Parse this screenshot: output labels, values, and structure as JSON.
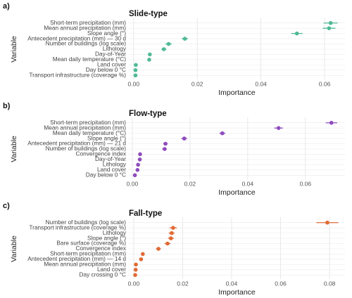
{
  "chart_data": [
    {
      "type": "dot",
      "panel_label": "a)",
      "title": "Slide-type",
      "xlabel": "Importance",
      "ylabel": "Variable",
      "categories": [
        "Short-term precipitation (mm)",
        "Mean annual precipitation (mm)",
        "Slope angle (°)",
        "Antecedent precipitation (mm) — 30 d",
        "Number of buildings (log scale)",
        "Lithology",
        "Day-of-Year",
        "Mean daily temperature (°C)",
        "Land cover",
        "Day below 0 °C",
        "Transport infrastructure (coverage %)"
      ],
      "values": [
        0.0619,
        0.0614,
        0.0513,
        0.0161,
        0.011,
        0.0095,
        0.0051,
        0.0049,
        0.0007,
        0.0006,
        0.0006
      ],
      "errors": [
        0.0022,
        0.002,
        0.0018,
        0.001,
        0.001,
        0.0008,
        0.0005,
        0.0005,
        0.0003,
        0.0003,
        0.0003
      ],
      "color": "#4fb996",
      "xlim": [
        -0.0015,
        0.0664
      ],
      "xticks": [
        {
          "value": 0,
          "label": "0.00"
        },
        {
          "value": 0.02,
          "label": "0.02"
        },
        {
          "value": 0.04,
          "label": "0.04"
        },
        {
          "value": 0.06,
          "label": "0.06"
        }
      ],
      "grid": true
    },
    {
      "type": "dot",
      "panel_label": "b)",
      "title": "Flow-type",
      "xlabel": "Importance",
      "ylabel": "Variable",
      "categories": [
        "Short-term precipitation (mm)",
        "Mean annual precipitation (mm)",
        "Mean daily temperature (°C)",
        "Slope angle (°)",
        "Antecedent precipitation (mm) — 21 d",
        "Number of buildings (log scale)",
        "Convergence index",
        "Day-of-Year",
        "Lithology",
        "Land cover",
        "Day below 0 °C"
      ],
      "values": [
        0.069,
        0.0507,
        0.0312,
        0.018,
        0.0115,
        0.0112,
        0.0027,
        0.0026,
        0.002,
        0.0018,
        0.0009
      ],
      "errors": [
        0.002,
        0.0015,
        0.001,
        0.001,
        0.0008,
        0.0008,
        0.0003,
        0.0003,
        0.0003,
        0.0003,
        0.0003
      ],
      "color": "#8e4cbf",
      "xlim": [
        -0.0012,
        0.0737
      ],
      "xticks": [
        {
          "value": 0,
          "label": "0.00"
        },
        {
          "value": 0.02,
          "label": "0.02"
        },
        {
          "value": 0.04,
          "label": "0.04"
        },
        {
          "value": 0.06,
          "label": "0.06"
        }
      ],
      "grid": true
    },
    {
      "type": "dot",
      "panel_label": "c)",
      "title": "Fall-type",
      "xlabel": "Importance",
      "ylabel": "Variable",
      "categories": [
        "Number of buildings (log scale)",
        "Transport infrastructure (coverage %)",
        "Lithology",
        "Slope angle (°)",
        "Bare surface (coverage %)",
        "Convergence index",
        "Short-term precipitation (mm)",
        "Antecedent precipitation (mm) — 14 d",
        "Mean annual precipitation (mm)",
        "Land cover",
        "Day crossing 0 °C"
      ],
      "values": [
        0.0791,
        0.0161,
        0.0155,
        0.0152,
        0.0138,
        0.0101,
        0.0037,
        0.003,
        0.0009,
        0.0008,
        0.0006
      ],
      "errors": [
        0.0045,
        0.0015,
        0.0012,
        0.0012,
        0.0012,
        0.001,
        0.0005,
        0.0005,
        0.0003,
        0.0003,
        0.0003
      ],
      "color": "#e06a35",
      "xlim": [
        -0.002,
        0.0863
      ],
      "xticks": [
        {
          "value": 0,
          "label": "0.00"
        },
        {
          "value": 0.02,
          "label": "0.02"
        },
        {
          "value": 0.04,
          "label": "0.04"
        },
        {
          "value": 0.06,
          "label": "0.06"
        },
        {
          "value": 0.08,
          "label": "0.08"
        }
      ],
      "grid": true
    }
  ]
}
